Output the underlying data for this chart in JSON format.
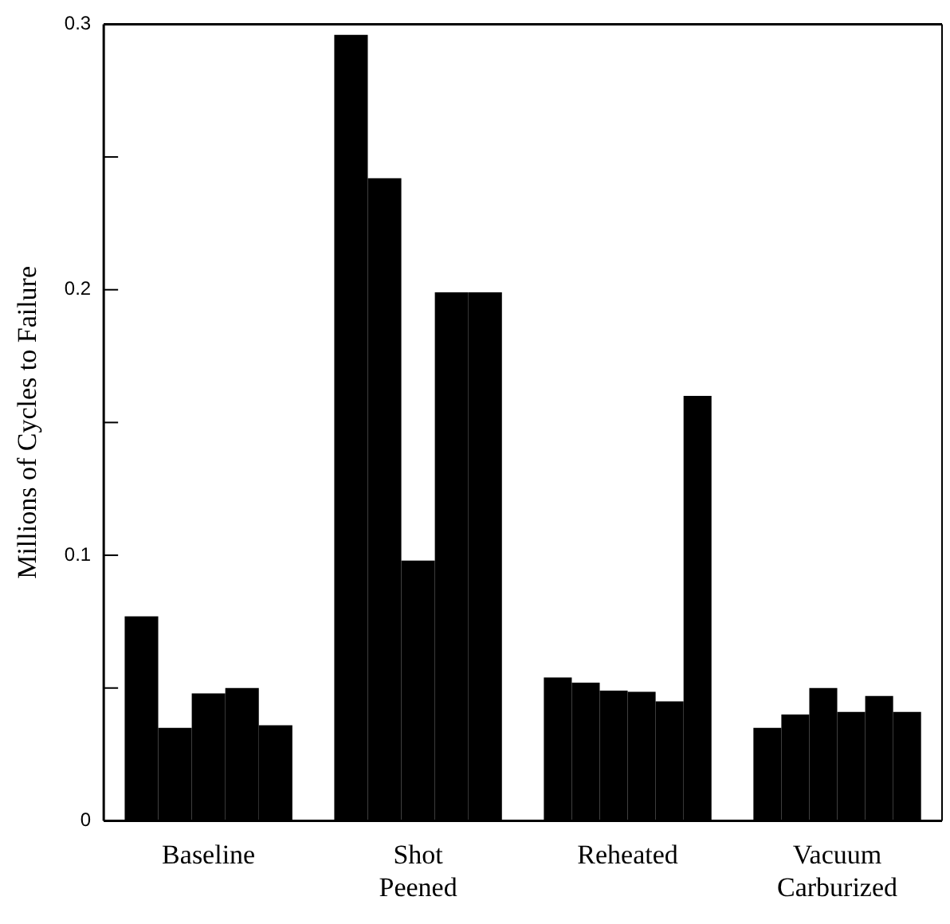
{
  "chart_data": {
    "type": "bar",
    "ylabel": "Millions of Cycles to Failure",
    "categories": [
      "Baseline",
      "Shot Peened",
      "Reheated",
      "Vacuum Carburized"
    ],
    "series": [
      {
        "color": "#000000",
        "values": [
          0.077,
          0.296,
          0.054,
          0.035
        ]
      },
      {
        "color": "#000000",
        "values": [
          0.035,
          0.242,
          0.052,
          0.04
        ]
      },
      {
        "color": "#000000",
        "values": [
          0.048,
          0.098,
          0.049,
          0.05
        ]
      },
      {
        "color": "#000000",
        "values": [
          0.05,
          0.199,
          0.0486,
          0.041
        ]
      },
      {
        "color": "#000000",
        "values": [
          0.036,
          0.199,
          0.045,
          0.047
        ]
      },
      {
        "color": "#000000",
        "values": [
          null,
          null,
          0.16,
          0.041
        ]
      }
    ],
    "ylim": [
      0,
      0.3
    ],
    "yticks": [
      0,
      {
        "value": 0.05,
        "label": null
      },
      0.1,
      {
        "value": 0.15,
        "label": null
      },
      0.2,
      {
        "value": 0.25,
        "label": null
      },
      0.3
    ],
    "grid": false,
    "legend": false
  }
}
